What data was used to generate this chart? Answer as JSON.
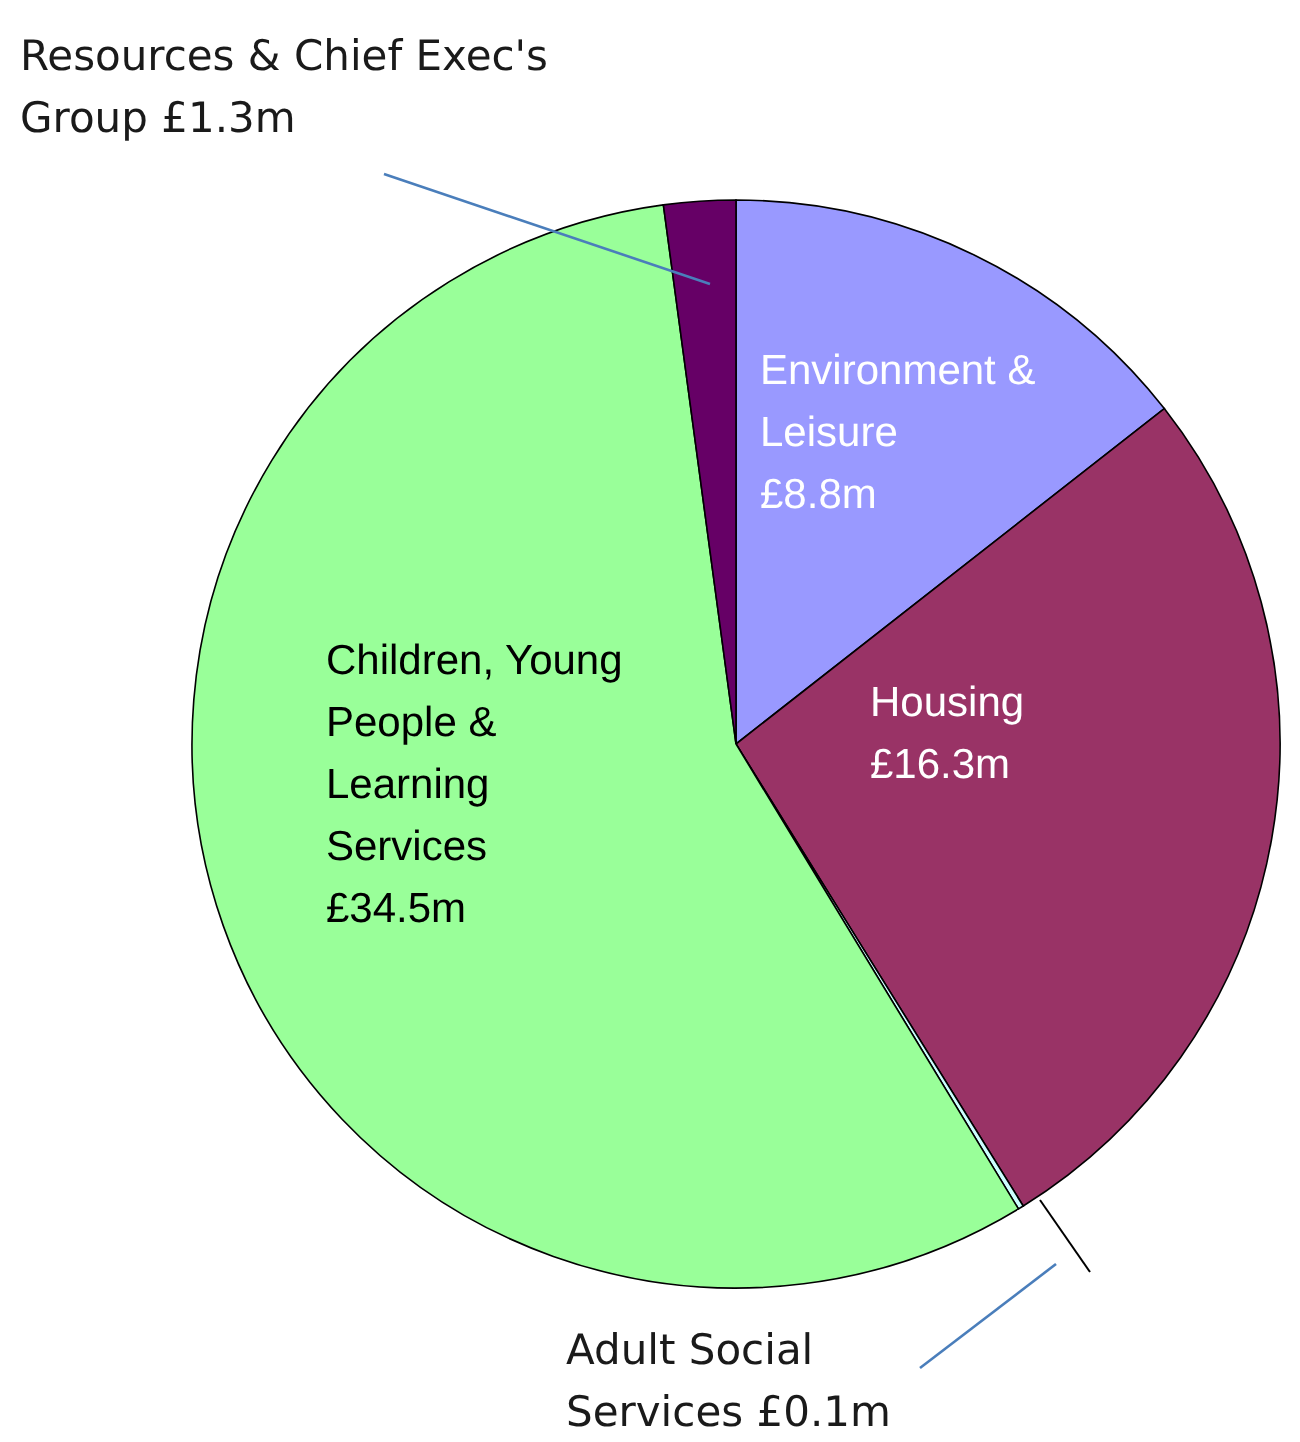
{
  "chart_data": {
    "type": "pie",
    "categories": [
      "Environment & Leisure",
      "Housing",
      "Adult Social Services",
      "Children, Young People & Learning Services",
      "Resources & Chief Exec's Group"
    ],
    "values": [
      8.8,
      16.3,
      0.1,
      34.5,
      1.3
    ],
    "value_labels": [
      "£8.8m",
      "£16.3m",
      "£0.1m",
      "£34.5m",
      "£1.3m"
    ],
    "colors": [
      "#9999ff",
      "#993366",
      "#ccffff",
      "#99ff99",
      "#660066"
    ]
  }
}
